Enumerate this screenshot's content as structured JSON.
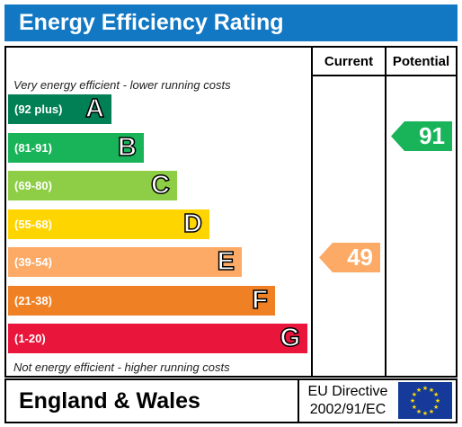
{
  "title": "Energy Efficiency Rating",
  "columns": {
    "current": "Current",
    "potential": "Potential"
  },
  "top_note": "Very energy efficient - lower running costs",
  "bottom_note": "Not energy efficient - higher running costs",
  "bands": [
    {
      "letter": "A",
      "range": "(92 plus)",
      "color": "#008054"
    },
    {
      "letter": "B",
      "range": "(81-91)",
      "color": "#19b459"
    },
    {
      "letter": "C",
      "range": "(69-80)",
      "color": "#8dce46"
    },
    {
      "letter": "D",
      "range": "(55-68)",
      "color": "#ffd500"
    },
    {
      "letter": "E",
      "range": "(39-54)",
      "color": "#fcaa65"
    },
    {
      "letter": "F",
      "range": "(21-38)",
      "color": "#ef8023"
    },
    {
      "letter": "G",
      "range": "(1-20)",
      "color": "#e9153b"
    }
  ],
  "current_rating": {
    "value": "49",
    "band": "E",
    "color": "#fcaa65"
  },
  "potential_rating": {
    "value": "91",
    "band": "B",
    "color": "#19b459"
  },
  "footer": {
    "region": "England & Wales",
    "directive_line1": "EU Directive",
    "directive_line2": "2002/91/EC",
    "flag_icon": "eu-flag-icon"
  }
}
